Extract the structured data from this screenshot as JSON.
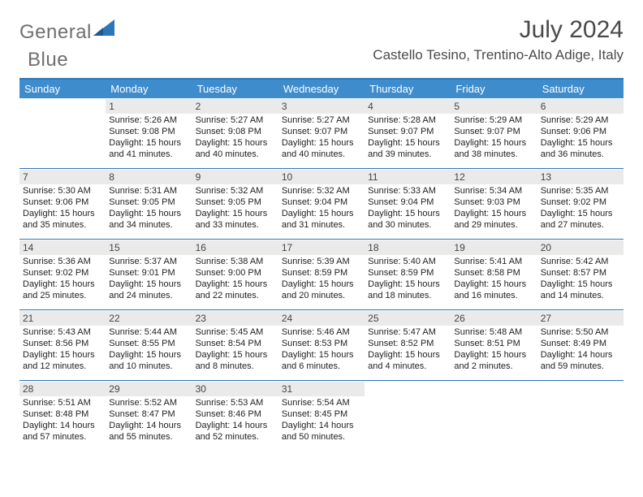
{
  "logo": {
    "text_a": "General",
    "text_b": "Blue",
    "color": "#2b76b7",
    "gray": "#6f6f6f"
  },
  "header": {
    "month": "July 2024",
    "location": "Castello Tesino, Trentino-Alto Adige, Italy"
  },
  "style": {
    "header_bg": "#3e8ccc",
    "border_color": "#2b76b7",
    "daynum_bg": "#eaeaea",
    "page_bg": "#ffffff",
    "day_header_fontsize": 13,
    "cell_fontsize": 11,
    "title_fontsize": 30,
    "location_fontsize": 17
  },
  "day_names": [
    "Sunday",
    "Monday",
    "Tuesday",
    "Wednesday",
    "Thursday",
    "Friday",
    "Saturday"
  ],
  "weeks": [
    [
      null,
      {
        "n": "1",
        "sr": "Sunrise: 5:26 AM",
        "ss": "Sunset: 9:08 PM",
        "d1": "Daylight: 15 hours",
        "d2": "and 41 minutes."
      },
      {
        "n": "2",
        "sr": "Sunrise: 5:27 AM",
        "ss": "Sunset: 9:08 PM",
        "d1": "Daylight: 15 hours",
        "d2": "and 40 minutes."
      },
      {
        "n": "3",
        "sr": "Sunrise: 5:27 AM",
        "ss": "Sunset: 9:07 PM",
        "d1": "Daylight: 15 hours",
        "d2": "and 40 minutes."
      },
      {
        "n": "4",
        "sr": "Sunrise: 5:28 AM",
        "ss": "Sunset: 9:07 PM",
        "d1": "Daylight: 15 hours",
        "d2": "and 39 minutes."
      },
      {
        "n": "5",
        "sr": "Sunrise: 5:29 AM",
        "ss": "Sunset: 9:07 PM",
        "d1": "Daylight: 15 hours",
        "d2": "and 38 minutes."
      },
      {
        "n": "6",
        "sr": "Sunrise: 5:29 AM",
        "ss": "Sunset: 9:06 PM",
        "d1": "Daylight: 15 hours",
        "d2": "and 36 minutes."
      }
    ],
    [
      {
        "n": "7",
        "sr": "Sunrise: 5:30 AM",
        "ss": "Sunset: 9:06 PM",
        "d1": "Daylight: 15 hours",
        "d2": "and 35 minutes."
      },
      {
        "n": "8",
        "sr": "Sunrise: 5:31 AM",
        "ss": "Sunset: 9:05 PM",
        "d1": "Daylight: 15 hours",
        "d2": "and 34 minutes."
      },
      {
        "n": "9",
        "sr": "Sunrise: 5:32 AM",
        "ss": "Sunset: 9:05 PM",
        "d1": "Daylight: 15 hours",
        "d2": "and 33 minutes."
      },
      {
        "n": "10",
        "sr": "Sunrise: 5:32 AM",
        "ss": "Sunset: 9:04 PM",
        "d1": "Daylight: 15 hours",
        "d2": "and 31 minutes."
      },
      {
        "n": "11",
        "sr": "Sunrise: 5:33 AM",
        "ss": "Sunset: 9:04 PM",
        "d1": "Daylight: 15 hours",
        "d2": "and 30 minutes."
      },
      {
        "n": "12",
        "sr": "Sunrise: 5:34 AM",
        "ss": "Sunset: 9:03 PM",
        "d1": "Daylight: 15 hours",
        "d2": "and 29 minutes."
      },
      {
        "n": "13",
        "sr": "Sunrise: 5:35 AM",
        "ss": "Sunset: 9:02 PM",
        "d1": "Daylight: 15 hours",
        "d2": "and 27 minutes."
      }
    ],
    [
      {
        "n": "14",
        "sr": "Sunrise: 5:36 AM",
        "ss": "Sunset: 9:02 PM",
        "d1": "Daylight: 15 hours",
        "d2": "and 25 minutes."
      },
      {
        "n": "15",
        "sr": "Sunrise: 5:37 AM",
        "ss": "Sunset: 9:01 PM",
        "d1": "Daylight: 15 hours",
        "d2": "and 24 minutes."
      },
      {
        "n": "16",
        "sr": "Sunrise: 5:38 AM",
        "ss": "Sunset: 9:00 PM",
        "d1": "Daylight: 15 hours",
        "d2": "and 22 minutes."
      },
      {
        "n": "17",
        "sr": "Sunrise: 5:39 AM",
        "ss": "Sunset: 8:59 PM",
        "d1": "Daylight: 15 hours",
        "d2": "and 20 minutes."
      },
      {
        "n": "18",
        "sr": "Sunrise: 5:40 AM",
        "ss": "Sunset: 8:59 PM",
        "d1": "Daylight: 15 hours",
        "d2": "and 18 minutes."
      },
      {
        "n": "19",
        "sr": "Sunrise: 5:41 AM",
        "ss": "Sunset: 8:58 PM",
        "d1": "Daylight: 15 hours",
        "d2": "and 16 minutes."
      },
      {
        "n": "20",
        "sr": "Sunrise: 5:42 AM",
        "ss": "Sunset: 8:57 PM",
        "d1": "Daylight: 15 hours",
        "d2": "and 14 minutes."
      }
    ],
    [
      {
        "n": "21",
        "sr": "Sunrise: 5:43 AM",
        "ss": "Sunset: 8:56 PM",
        "d1": "Daylight: 15 hours",
        "d2": "and 12 minutes."
      },
      {
        "n": "22",
        "sr": "Sunrise: 5:44 AM",
        "ss": "Sunset: 8:55 PM",
        "d1": "Daylight: 15 hours",
        "d2": "and 10 minutes."
      },
      {
        "n": "23",
        "sr": "Sunrise: 5:45 AM",
        "ss": "Sunset: 8:54 PM",
        "d1": "Daylight: 15 hours",
        "d2": "and 8 minutes."
      },
      {
        "n": "24",
        "sr": "Sunrise: 5:46 AM",
        "ss": "Sunset: 8:53 PM",
        "d1": "Daylight: 15 hours",
        "d2": "and 6 minutes."
      },
      {
        "n": "25",
        "sr": "Sunrise: 5:47 AM",
        "ss": "Sunset: 8:52 PM",
        "d1": "Daylight: 15 hours",
        "d2": "and 4 minutes."
      },
      {
        "n": "26",
        "sr": "Sunrise: 5:48 AM",
        "ss": "Sunset: 8:51 PM",
        "d1": "Daylight: 15 hours",
        "d2": "and 2 minutes."
      },
      {
        "n": "27",
        "sr": "Sunrise: 5:50 AM",
        "ss": "Sunset: 8:49 PM",
        "d1": "Daylight: 14 hours",
        "d2": "and 59 minutes."
      }
    ],
    [
      {
        "n": "28",
        "sr": "Sunrise: 5:51 AM",
        "ss": "Sunset: 8:48 PM",
        "d1": "Daylight: 14 hours",
        "d2": "and 57 minutes."
      },
      {
        "n": "29",
        "sr": "Sunrise: 5:52 AM",
        "ss": "Sunset: 8:47 PM",
        "d1": "Daylight: 14 hours",
        "d2": "and 55 minutes."
      },
      {
        "n": "30",
        "sr": "Sunrise: 5:53 AM",
        "ss": "Sunset: 8:46 PM",
        "d1": "Daylight: 14 hours",
        "d2": "and 52 minutes."
      },
      {
        "n": "31",
        "sr": "Sunrise: 5:54 AM",
        "ss": "Sunset: 8:45 PM",
        "d1": "Daylight: 14 hours",
        "d2": "and 50 minutes."
      },
      null,
      null,
      null
    ]
  ]
}
